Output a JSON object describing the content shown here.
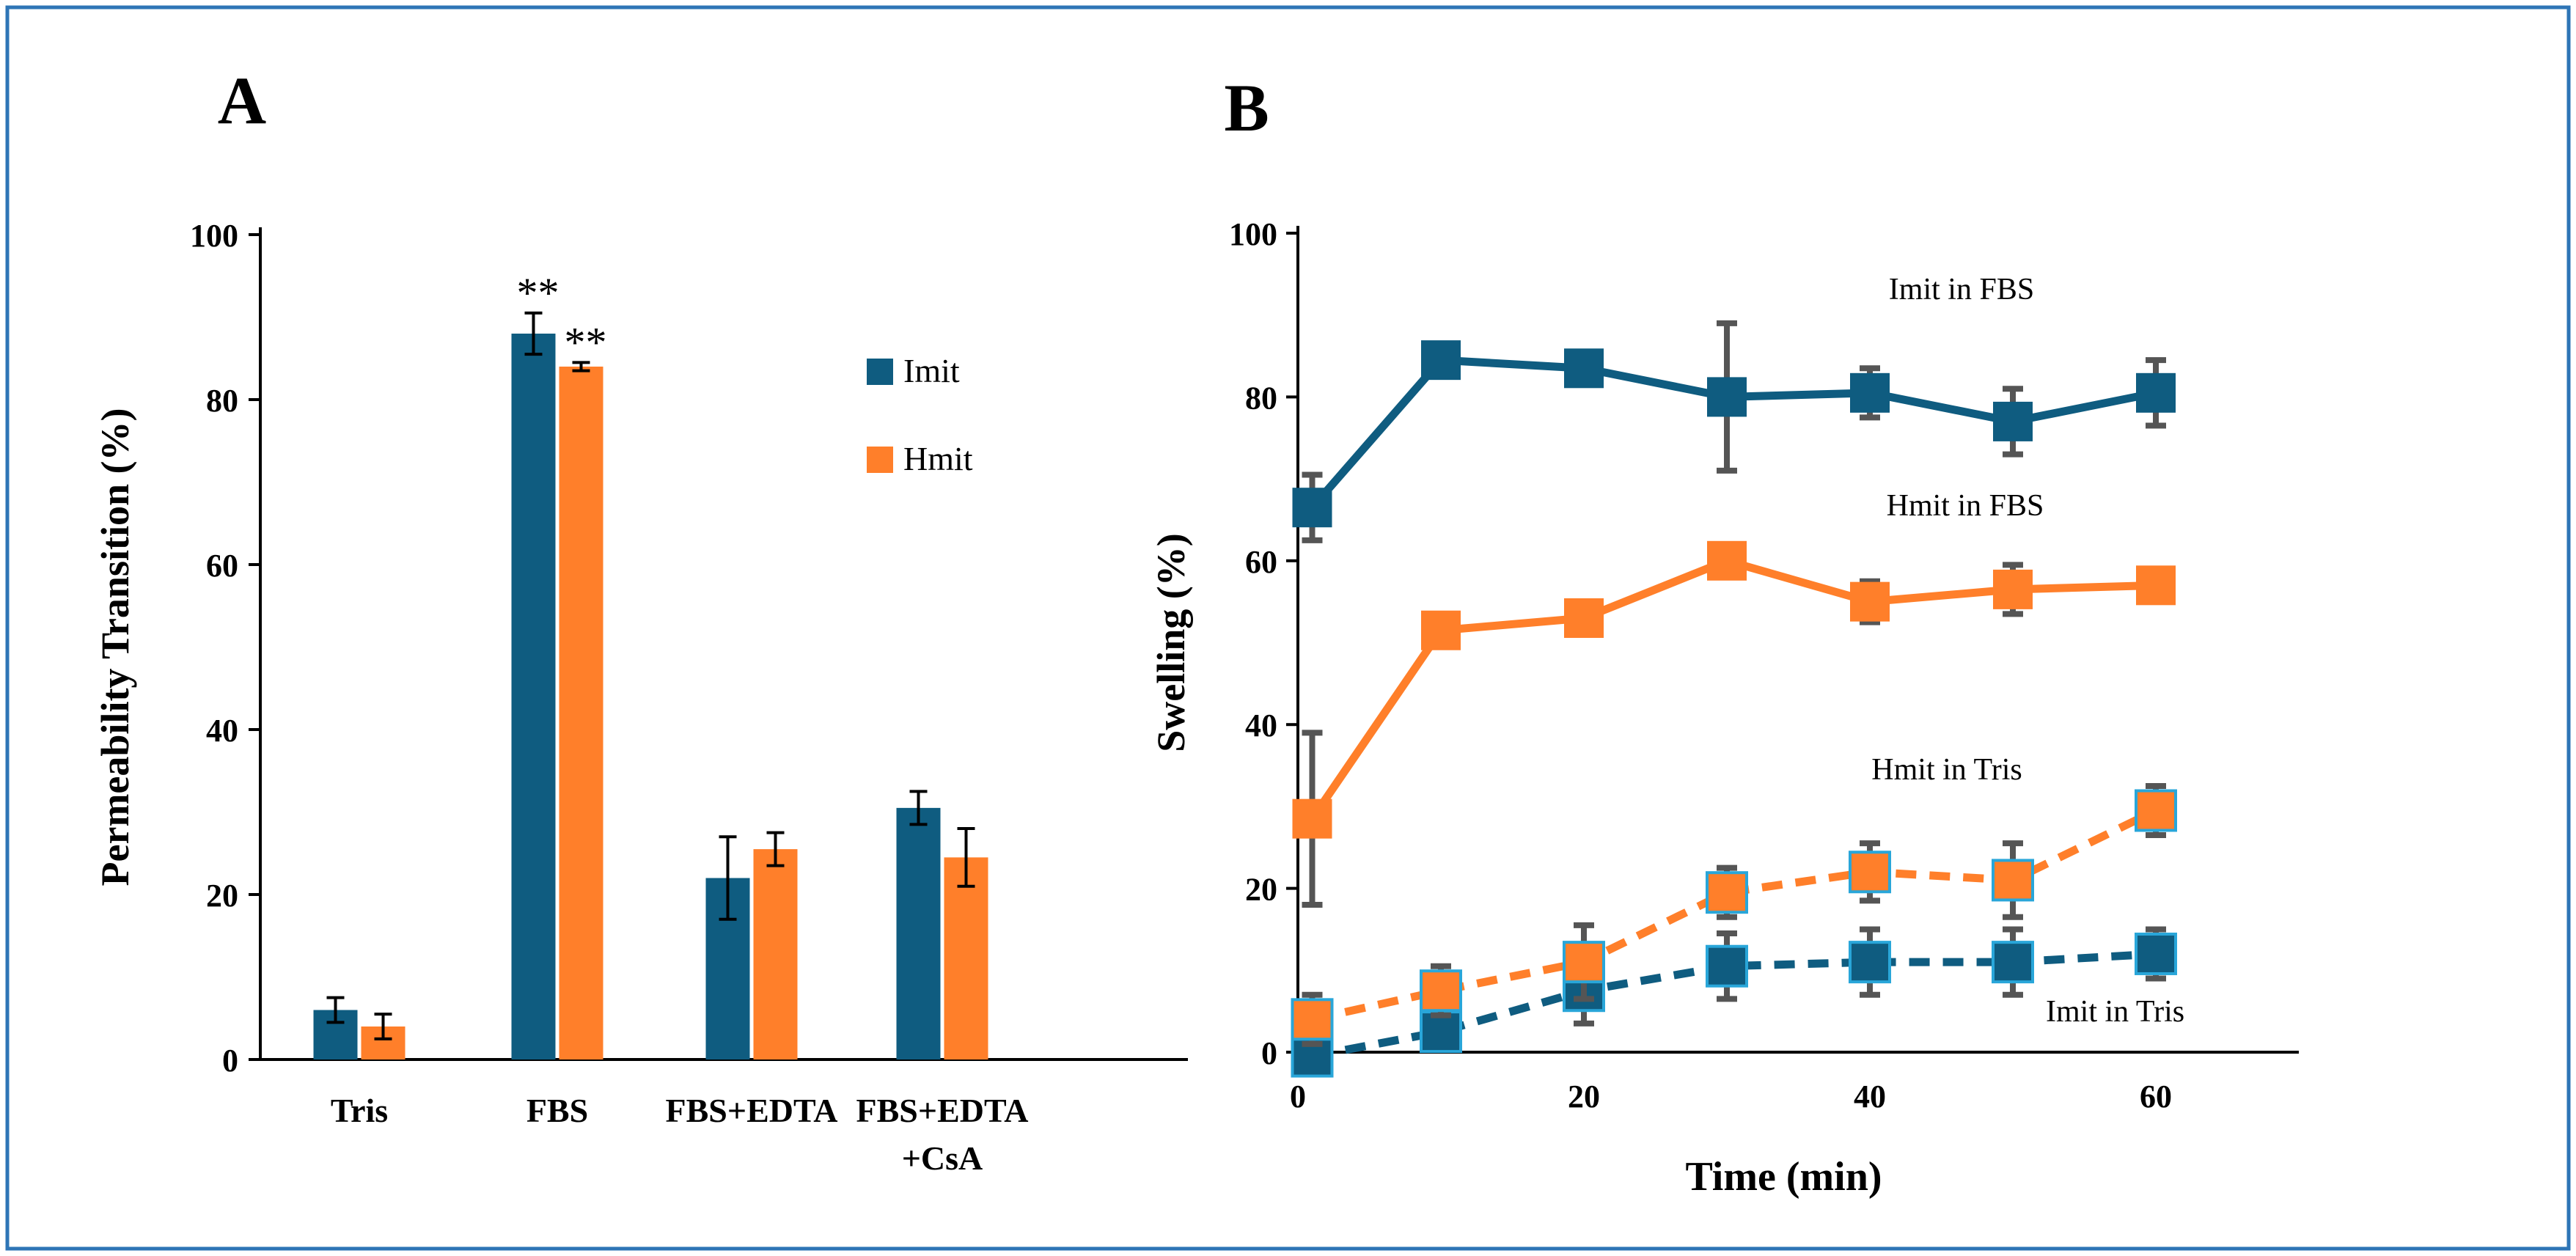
{
  "panels": {
    "a": {
      "letter": "A"
    },
    "b": {
      "letter": "B"
    }
  },
  "colors": {
    "imit": "#0f5c80",
    "hmit": "#ff7f2a",
    "border": "#2e75b6",
    "errorbar_b": "#555555",
    "marker_edge_dashed": "#29a6d9"
  },
  "chart_data": [
    {
      "type": "bar",
      "panel": "A",
      "categories": [
        [
          "Tris"
        ],
        [
          "FBS"
        ],
        [
          "FBS+EDTA"
        ],
        [
          "FBS+EDTA",
          "+CsA"
        ]
      ],
      "series": [
        {
          "name": "Imit",
          "values": [
            6,
            88,
            22,
            30.5
          ],
          "errors": [
            1.5,
            2.5,
            5,
            2
          ],
          "annotations": [
            "",
            "**",
            "",
            ""
          ]
        },
        {
          "name": "Hmit",
          "values": [
            4,
            84,
            25.5,
            24.5
          ],
          "errors": [
            1.5,
            0.5,
            2,
            3.5
          ],
          "annotations": [
            "",
            "**",
            "",
            ""
          ]
        }
      ],
      "title": "",
      "xlabel": "",
      "ylabel": "Permeability Transition (%)",
      "ylim": [
        0,
        100
      ],
      "yticks": [
        0,
        20,
        40,
        60,
        80,
        100
      ],
      "legend": "right"
    },
    {
      "type": "line",
      "panel": "B",
      "x": [
        1,
        10,
        20,
        30,
        40,
        50,
        60
      ],
      "series": [
        {
          "name": "Imit in FBS",
          "style": "solid",
          "color": "imit",
          "values": [
            66.5,
            84.5,
            83.5,
            80,
            80.5,
            77,
            80.5
          ],
          "errors": [
            4,
            2,
            1.5,
            9,
            3,
            4,
            4
          ]
        },
        {
          "name": "Hmit in FBS",
          "style": "solid",
          "color": "hmit",
          "values": [
            28.5,
            51.5,
            53,
            60,
            55,
            56.5,
            57
          ],
          "errors": [
            10.5,
            1.5,
            1.5,
            1.5,
            2.5,
            3,
            1.5
          ]
        },
        {
          "name": "Hmit in Tris",
          "style": "dashed",
          "color": "hmit",
          "values": [
            4,
            7.5,
            11,
            19.5,
            22,
            21,
            29.5
          ],
          "errors": [
            3,
            3,
            4.5,
            3,
            3.5,
            4.5,
            3
          ]
        },
        {
          "name": "Imit in Tris",
          "style": "dashed",
          "color": "imit",
          "values": [
            -0.5,
            2.5,
            7.5,
            10.5,
            11,
            11,
            12
          ],
          "errors": [
            1.5,
            2,
            4,
            4,
            4,
            4,
            3
          ]
        }
      ],
      "title": "",
      "xlabel": "Time (min)",
      "ylabel": "Swelling (%)",
      "xlim": [
        0,
        70
      ],
      "ylim": [
        0,
        100
      ],
      "xticks": [
        0,
        20,
        40,
        60
      ],
      "yticks": [
        0,
        20,
        40,
        60,
        80,
        100
      ]
    }
  ]
}
